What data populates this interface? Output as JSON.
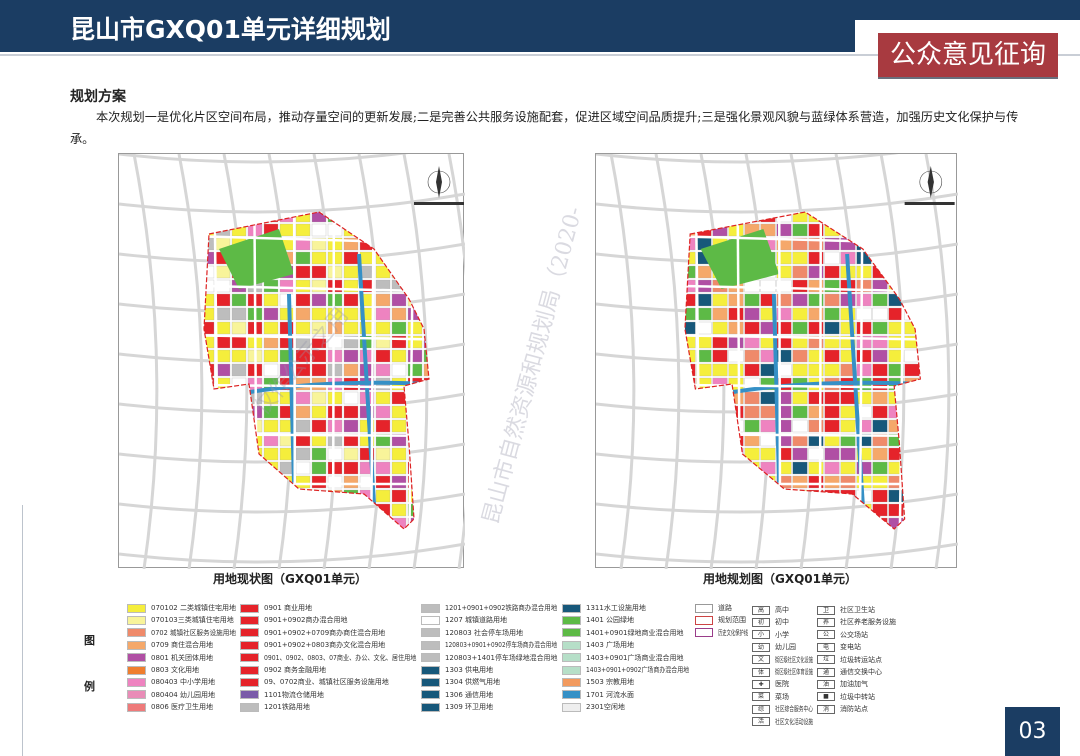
{
  "header": {
    "title": "昆山市GXQ01单元详细规划",
    "badge": "公众意见征询"
  },
  "section": {
    "title": "规划方案",
    "body": "本次规划一是优化片区空间布局，推动存量空间的更新发展;二是完善公共服务设施配套，促进区域空间品质提升;三是强化景观风貌与蓝绿体系营造，加强历史文化保护与传承。"
  },
  "maps": [
    {
      "caption": "用地现状图（GXQ01单元）"
    },
    {
      "caption": "用地规划图（GXQ01单元）"
    }
  ],
  "watermark": {
    "line1": "仅作公示之用",
    "line2": "昆山市自然资源和规划局（2020-"
  },
  "legend": {
    "side_top": "图",
    "side_bottom": "例",
    "land_use": [
      {
        "label": "070102 二类城镇住宅用地",
        "color": "#f5ee3c"
      },
      {
        "label": "070103三类城镇住宅用地",
        "color": "#f8f49a"
      },
      {
        "label": "0702 城镇社区服务设施用地",
        "color": "#ef8a6a"
      },
      {
        "label": "0709 商住混合用地",
        "color": "#f5a86a"
      },
      {
        "label": "0801 机关团体用地",
        "color": "#b04fa4"
      },
      {
        "label": "0803 文化用地",
        "color": "#ef7e2e"
      },
      {
        "label": "080403 中小学用地",
        "color": "#ee83c0"
      },
      {
        "label": "080404 幼儿园用地",
        "color": "#e98cb7"
      },
      {
        "label": "0806 医疗卫生用地",
        "color": "#ee7a7a"
      },
      {
        "label": "0901 商业用地",
        "color": "#e5232a"
      },
      {
        "label": "0901+0902商办混合用地",
        "color": "#e5232a"
      },
      {
        "label": "0901+0902+0709商办商住混合用地",
        "color": "#e5232a"
      },
      {
        "label": "0901+0902+0803商办文化混合用地",
        "color": "#e5232a"
      },
      {
        "label": "0901、0902、0803、07商业、办公、文化、居住用地",
        "color": "#e5232a"
      },
      {
        "label": "0902 商务金融用地",
        "color": "#e5232a"
      },
      {
        "label": "09、0702商业、城镇社区服务设施用地",
        "color": "#e5232a"
      },
      {
        "label": "1101物流仓储用地",
        "color": "#7a5ba8"
      },
      {
        "label": "1201铁路用地",
        "color": "#bdbdbd"
      },
      {
        "label": "1201+0901+0902铁路商办混合用地",
        "color": "#bdbdbd"
      },
      {
        "label": "1207 城镇道路用地",
        "color": "#ffffff"
      },
      {
        "label": "120803 社会停车场用地",
        "color": "#bdbdbd"
      },
      {
        "label": "120803+0901+0902停车场商办混合用地",
        "color": "#bdbdbd"
      },
      {
        "label": "120803+1401停车场绿地混合用地",
        "color": "#bdbdbd"
      },
      {
        "label": "1303 供电用地",
        "color": "#17587a"
      },
      {
        "label": "1304 供燃气用地",
        "color": "#17587a"
      },
      {
        "label": "1306 通信用地",
        "color": "#17587a"
      },
      {
        "label": "1309 环卫用地",
        "color": "#17587a"
      },
      {
        "label": "1311水工设施用地",
        "color": "#17587a"
      },
      {
        "label": "1401 公园绿地",
        "color": "#5dba46"
      },
      {
        "label": "1401+0901绿地商业混合用地",
        "color": "#5dba46"
      },
      {
        "label": "1403 广场用地",
        "color": "#b6dfc8"
      },
      {
        "label": "1403+0901广场商业混合用地",
        "color": "#b6dfc8"
      },
      {
        "label": "1403+0901+0902广场商办混合用地",
        "color": "#b6dfc8"
      },
      {
        "label": "1503 宗教用地",
        "color": "#f29a5e"
      },
      {
        "label": "1701 河流水面",
        "color": "#3590c6"
      },
      {
        "label": "2301空闲地",
        "color": "#eeeeee"
      }
    ],
    "lines": [
      {
        "label": "道路"
      },
      {
        "label": "规划范围"
      },
      {
        "label": "历史文化保护线"
      }
    ],
    "facilities_a": [
      {
        "label": "高中",
        "icon": "高"
      },
      {
        "label": "初中",
        "icon": "初"
      },
      {
        "label": "小学",
        "icon": "小"
      },
      {
        "label": "幼儿园",
        "icon": "幼"
      },
      {
        "label": "街区级社区文化设施",
        "icon": "文"
      },
      {
        "label": "街区级社区体育设施",
        "icon": "体"
      },
      {
        "label": "医院",
        "icon": "✚"
      },
      {
        "label": "菜场",
        "icon": "菜"
      },
      {
        "label": "社区综合服务中心",
        "icon": "综"
      },
      {
        "label": "社区文化活动设施",
        "icon": "活"
      }
    ],
    "facilities_b": [
      {
        "label": "社区卫生站",
        "icon": "卫"
      },
      {
        "label": "社区养老服务设施",
        "icon": "养"
      },
      {
        "label": "公交场站",
        "icon": "公"
      },
      {
        "label": "变电站",
        "icon": "电"
      },
      {
        "label": "垃圾转运站点",
        "icon": "垃"
      },
      {
        "label": "通信交换中心",
        "icon": "通"
      },
      {
        "label": "加油加气",
        "icon": "油"
      },
      {
        "label": "垃圾中转站",
        "icon": "■"
      },
      {
        "label": "消防站点",
        "icon": "消"
      }
    ]
  },
  "page_number": "03"
}
